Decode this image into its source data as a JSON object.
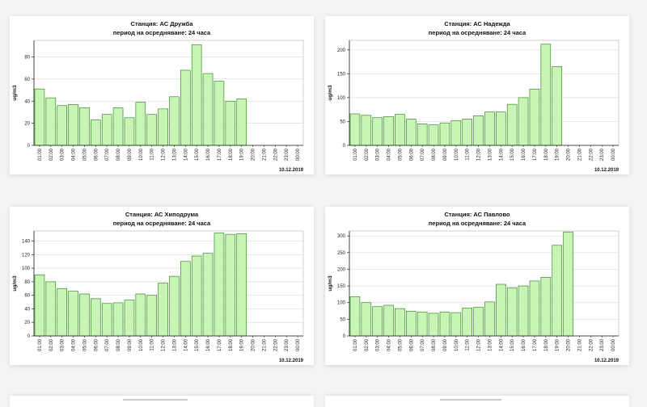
{
  "date_label": "10.12.2019",
  "y_axis_label": "ug/m3",
  "hours": [
    "01:00",
    "02:00",
    "03:00",
    "04:00",
    "05:00",
    "06:00",
    "07:00",
    "08:00",
    "09:00",
    "10:00",
    "11:00",
    "12:00",
    "13:00",
    "14:00",
    "15:00",
    "16:00",
    "17:00",
    "18:00",
    "19:00",
    "20:00",
    "21:00",
    "22:00",
    "23:00",
    "00:00"
  ],
  "colors": {
    "bar_fill": "#c8f5b6",
    "bar_stroke": "#3a8a2a",
    "grid": "#dddddd",
    "axis": "#222222"
  },
  "chart_data": [
    {
      "type": "bar",
      "title": "Станция: АС Дружба",
      "subtitle": "период на осредняване: 24 часа",
      "ylabel": "ug/m3",
      "ylim": [
        0,
        95
      ],
      "yticks": [
        0,
        20,
        40,
        60,
        80
      ],
      "categories": [
        "01:00",
        "02:00",
        "03:00",
        "04:00",
        "05:00",
        "06:00",
        "07:00",
        "08:00",
        "09:00",
        "10:00",
        "11:00",
        "12:00",
        "13:00",
        "14:00",
        "15:00",
        "16:00",
        "17:00",
        "18:00",
        "19:00",
        "20:00",
        "21:00",
        "22:00",
        "23:00",
        "00:00"
      ],
      "values": [
        51,
        43,
        36,
        37,
        34,
        23,
        28,
        34,
        25,
        39,
        28,
        33,
        44,
        68,
        91,
        65,
        58,
        40,
        42,
        null,
        null,
        null,
        null,
        null
      ],
      "date_label": "10.12.2019",
      "grid": true
    },
    {
      "type": "bar",
      "title": "Станция: АС Надежда",
      "subtitle": "период на осредняване: 24 часа",
      "ylabel": "ug/m3",
      "ylim": [
        0,
        220
      ],
      "yticks": [
        0,
        50,
        100,
        150,
        200
      ],
      "categories": [
        "01:00",
        "02:00",
        "03:00",
        "04:00",
        "05:00",
        "06:00",
        "07:00",
        "08:00",
        "09:00",
        "10:00",
        "11:00",
        "12:00",
        "13:00",
        "14:00",
        "15:00",
        "16:00",
        "17:00",
        "18:00",
        "19:00",
        "20:00",
        "21:00",
        "22:00",
        "23:00",
        "00:00"
      ],
      "values": [
        66,
        63,
        58,
        60,
        65,
        55,
        45,
        43,
        47,
        52,
        55,
        62,
        70,
        70,
        86,
        100,
        118,
        212,
        165,
        null,
        null,
        null,
        null,
        null
      ],
      "date_label": "10.12.2019",
      "grid": true
    },
    {
      "type": "bar",
      "title": "Станция: АС Хиподрума",
      "subtitle": "период на осредняване: 24 часа",
      "ylabel": "ug/m3",
      "ylim": [
        0,
        155
      ],
      "yticks": [
        0,
        20,
        40,
        60,
        80,
        100,
        120,
        140
      ],
      "categories": [
        "01:00",
        "02:00",
        "03:00",
        "04:00",
        "05:00",
        "06:00",
        "07:00",
        "08:00",
        "09:00",
        "10:00",
        "11:00",
        "12:00",
        "13:00",
        "14:00",
        "15:00",
        "16:00",
        "17:00",
        "18:00",
        "19:00",
        "20:00",
        "21:00",
        "22:00",
        "23:00",
        "00:00"
      ],
      "values": [
        90,
        80,
        70,
        66,
        62,
        55,
        48,
        49,
        53,
        62,
        60,
        78,
        88,
        110,
        118,
        122,
        152,
        150,
        151,
        null,
        null,
        null,
        null,
        null
      ],
      "date_label": "10.12.2019",
      "grid": true
    },
    {
      "type": "bar",
      "title": "Станция: АС Павлово",
      "subtitle": "период на осредняване: 24 часа",
      "ylabel": "ug/m3",
      "ylim": [
        0,
        315
      ],
      "yticks": [
        0,
        50,
        100,
        150,
        200,
        250,
        300
      ],
      "categories": [
        "01:00",
        "02:00",
        "03:00",
        "04:00",
        "05:00",
        "06:00",
        "07:00",
        "08:00",
        "09:00",
        "10:00",
        "11:00",
        "12:00",
        "13:00",
        "14:00",
        "15:00",
        "16:00",
        "17:00",
        "18:00",
        "19:00",
        "20:00",
        "21:00",
        "22:00",
        "23:00",
        "00:00"
      ],
      "values": [
        118,
        100,
        88,
        92,
        82,
        74,
        72,
        68,
        72,
        70,
        84,
        86,
        102,
        155,
        144,
        150,
        165,
        176,
        272,
        312,
        null,
        null,
        null,
        null
      ],
      "date_label": "10.12.2019",
      "grid": true
    }
  ]
}
